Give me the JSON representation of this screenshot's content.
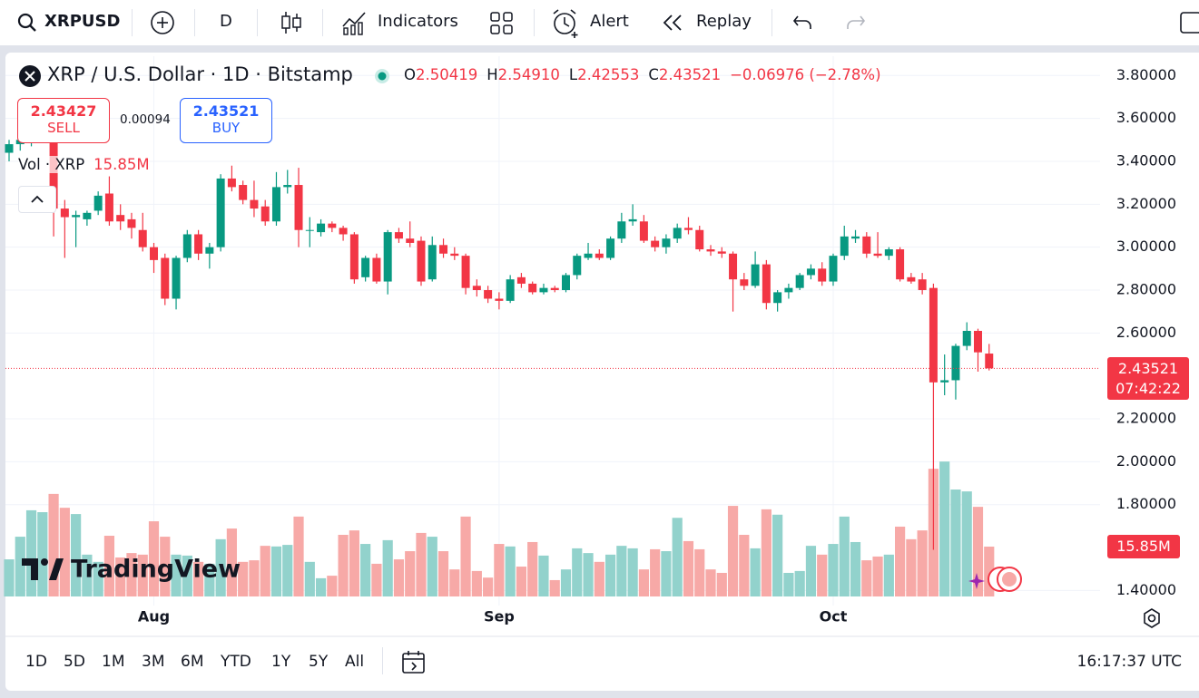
{
  "toolbar": {
    "symbol": "XRPUSD",
    "interval": "D",
    "indicators": "Indicators",
    "alert": "Alert",
    "replay": "Replay"
  },
  "quote": {
    "sell": 2.43427,
    "sell_text": "SELL",
    "spread": 0.00094,
    "buy": 2.43521,
    "buy_text": "BUY"
  },
  "legend": [
    {
      "key": "O",
      "value": "2.50419"
    },
    {
      "key": "H",
      "value": "2.54910"
    },
    {
      "key": "L",
      "value": "2.42553"
    },
    {
      "key": "C",
      "value": "2.43521"
    }
  ],
  "change": "−0.06976 (−2.78%)",
  "countdown": "07:42:22",
  "brand": "TradingView",
  "ranges": [
    "1D",
    "5D",
    "1M",
    "3M",
    "6M",
    "YTD",
    "1Y",
    "5Y",
    "All"
  ],
  "clock": "16:17:37 UTC",
  "chart_data": {
    "type": "candlestick",
    "title": "XRP / U.S. Dollar · 1D · Bitstamp",
    "categories": [
      null,
      null,
      null,
      null,
      null,
      null,
      null,
      null,
      null,
      null,
      null,
      null,
      null,
      "Aug",
      null,
      null,
      null,
      null,
      null,
      null,
      null,
      null,
      null,
      null,
      null,
      null,
      null,
      null,
      null,
      null,
      null,
      null,
      null,
      null,
      null,
      null,
      null,
      null,
      null,
      null,
      null,
      null,
      null,
      null,
      "Sep",
      null,
      null,
      null,
      null,
      null,
      null,
      null,
      null,
      null,
      null,
      null,
      null,
      null,
      null,
      null,
      null,
      null,
      null,
      null,
      null,
      null,
      null,
      null,
      null,
      null,
      null,
      null,
      null,
      null,
      "Oct",
      null,
      null,
      null,
      null,
      null,
      null,
      null,
      null,
      null,
      null,
      null,
      null,
      null,
      null
    ],
    "open": [
      3.44,
      3.48,
      3.5,
      3.53,
      3.56,
      3.18,
      3.14,
      3.13,
      3.17,
      3.25,
      3.15,
      3.13,
      3.08,
      3.0,
      2.95,
      2.76,
      2.95,
      3.06,
      2.97,
      3.0,
      3.32,
      3.29,
      3.22,
      3.19,
      3.12,
      3.28,
      3.29,
      3.08,
      3.07,
      3.11,
      3.09,
      3.06,
      2.86,
      2.95,
      2.84,
      3.07,
      3.04,
      3.03,
      2.85,
      3.01,
      2.97,
      2.96,
      2.82,
      2.8,
      2.76,
      2.75,
      2.86,
      2.83,
      2.79,
      2.81,
      2.8,
      2.87,
      2.95,
      2.97,
      2.95,
      3.04,
      3.12,
      3.12,
      3.03,
      3.0,
      3.04,
      3.09,
      3.08,
      2.99,
      2.98,
      2.97,
      2.85,
      2.82,
      2.92,
      2.74,
      2.79,
      2.81,
      2.87,
      2.9,
      2.84,
      2.96,
      3.04,
      3.05,
      2.97,
      2.96,
      2.99,
      2.86,
      2.85,
      2.81,
      2.37,
      2.38,
      2.54,
      2.61,
      2.50419
    ],
    "high": [
      3.5,
      3.52,
      3.56,
      3.6,
      3.58,
      3.22,
      3.17,
      3.17,
      3.26,
      3.33,
      3.2,
      3.16,
      3.16,
      3.02,
      2.97,
      2.96,
      3.08,
      3.08,
      3.02,
      3.34,
      3.38,
      3.31,
      3.31,
      3.22,
      3.35,
      3.36,
      3.37,
      3.14,
      3.13,
      3.12,
      3.1,
      3.07,
      2.96,
      2.97,
      3.08,
      3.09,
      3.12,
      3.05,
      3.05,
      3.04,
      3.0,
      2.97,
      2.85,
      2.82,
      2.79,
      2.87,
      2.88,
      2.84,
      2.83,
      2.82,
      2.88,
      2.97,
      3.02,
      2.99,
      3.05,
      3.16,
      3.2,
      3.15,
      3.05,
      3.06,
      3.11,
      3.14,
      3.1,
      3.01,
      3.0,
      2.98,
      2.88,
      2.98,
      2.94,
      2.8,
      2.83,
      2.88,
      2.92,
      2.93,
      2.97,
      3.1,
      3.08,
      3.07,
      3.07,
      3.0,
      3.0,
      2.88,
      2.88,
      2.83,
      2.5,
      2.55,
      2.65,
      2.62,
      2.5491
    ],
    "low": [
      3.4,
      3.45,
      3.47,
      3.5,
      3.05,
      2.95,
      3.0,
      3.1,
      3.15,
      3.1,
      3.08,
      3.04,
      2.98,
      2.88,
      2.73,
      2.71,
      2.93,
      2.94,
      2.9,
      2.98,
      3.26,
      3.2,
      3.14,
      3.1,
      3.1,
      3.25,
      3.0,
      3.0,
      3.05,
      3.07,
      3.03,
      2.83,
      2.84,
      2.83,
      2.78,
      3.02,
      3.0,
      2.82,
      2.84,
      2.95,
      2.94,
      2.78,
      2.77,
      2.74,
      2.71,
      2.74,
      2.81,
      2.78,
      2.78,
      2.79,
      2.79,
      2.85,
      2.94,
      2.94,
      2.94,
      3.02,
      3.1,
      3.02,
      2.98,
      2.97,
      3.02,
      3.06,
      2.98,
      2.96,
      2.95,
      2.7,
      2.8,
      2.81,
      2.71,
      2.7,
      2.76,
      2.8,
      2.85,
      2.82,
      2.82,
      2.94,
      3.02,
      2.95,
      2.95,
      2.94,
      2.84,
      2.83,
      2.78,
      1.59,
      2.31,
      2.29,
      2.52,
      2.42,
      2.42553
    ],
    "close": [
      3.48,
      3.5,
      3.53,
      3.56,
      3.18,
      3.14,
      3.15,
      3.16,
      3.24,
      3.12,
      3.12,
      3.09,
      3.0,
      2.94,
      2.76,
      2.95,
      3.06,
      2.97,
      3.0,
      3.32,
      3.28,
      3.22,
      3.18,
      3.12,
      3.28,
      3.29,
      3.08,
      3.08,
      3.11,
      3.09,
      3.06,
      2.85,
      2.95,
      2.84,
      3.07,
      3.04,
      3.02,
      2.84,
      3.01,
      2.97,
      2.96,
      2.81,
      2.8,
      2.76,
      2.75,
      2.85,
      2.83,
      2.79,
      2.81,
      2.8,
      2.87,
      2.96,
      2.97,
      2.95,
      3.04,
      3.12,
      3.13,
      3.03,
      3.0,
      3.04,
      3.09,
      3.08,
      2.99,
      2.98,
      2.97,
      2.85,
      2.82,
      2.92,
      2.74,
      2.79,
      2.81,
      2.87,
      2.9,
      2.84,
      2.96,
      3.05,
      3.05,
      2.97,
      2.96,
      2.99,
      2.85,
      2.84,
      2.8,
      2.37,
      2.38,
      2.54,
      2.61,
      2.51,
      2.43521
    ],
    "up_color": "#089981",
    "down_color": "#f23645",
    "volume": {
      "name": "Vol · XRP",
      "last_label": "15.85M",
      "up_color": "#92d2cc",
      "down_color": "#f7a9a7",
      "values": [
        11.8,
        19,
        27.4,
        26.8,
        32.6,
        28.2,
        26.2,
        13.3,
        11,
        19.3,
        12.4,
        13.8,
        13.3,
        23.9,
        19,
        13.3,
        13,
        11,
        10.4,
        18.2,
        21.6,
        11,
        11.5,
        16.1,
        15.9,
        16.4,
        25.4,
        11,
        5.8,
        6.6,
        19.6,
        21,
        16.7,
        10.4,
        17.9,
        11.8,
        14.4,
        20.2,
        19,
        14.4,
        8.6,
        25.4,
        8.1,
        6,
        16.7,
        15.9,
        9.5,
        17.3,
        13,
        5.2,
        8.6,
        15.3,
        13.8,
        11,
        13.3,
        16.1,
        15.3,
        8.6,
        15,
        14.4,
        25,
        17.6,
        15,
        8.6,
        7.5,
        28.8,
        19.6,
        15.3,
        27.7,
        26,
        7.5,
        8.1,
        16.1,
        13.3,
        16.7,
        25.4,
        17.3,
        11.5,
        12.7,
        13.3,
        22.2,
        18.2,
        21,
        40.6,
        42.9,
        34,
        33.4,
        28.5,
        15.85
      ]
    },
    "ylim": [
      1.33,
      3.89
    ],
    "yticks": [
      {
        "value": 3.8,
        "label": "3.80000"
      },
      {
        "value": 3.6,
        "label": "3.60000"
      },
      {
        "value": 3.4,
        "label": "3.40000"
      },
      {
        "value": 3.2,
        "label": "3.20000"
      },
      {
        "value": 3.0,
        "label": "3.00000"
      },
      {
        "value": 2.8,
        "label": "2.80000"
      },
      {
        "value": 2.6,
        "label": "2.60000"
      },
      {
        "value": 2.2,
        "label": "2.20000"
      },
      {
        "value": 2.0,
        "label": "2.00000"
      },
      {
        "value": 1.8,
        "label": "1.80000"
      },
      {
        "value": 1.4,
        "label": "1.40000"
      }
    ],
    "grid": true
  }
}
